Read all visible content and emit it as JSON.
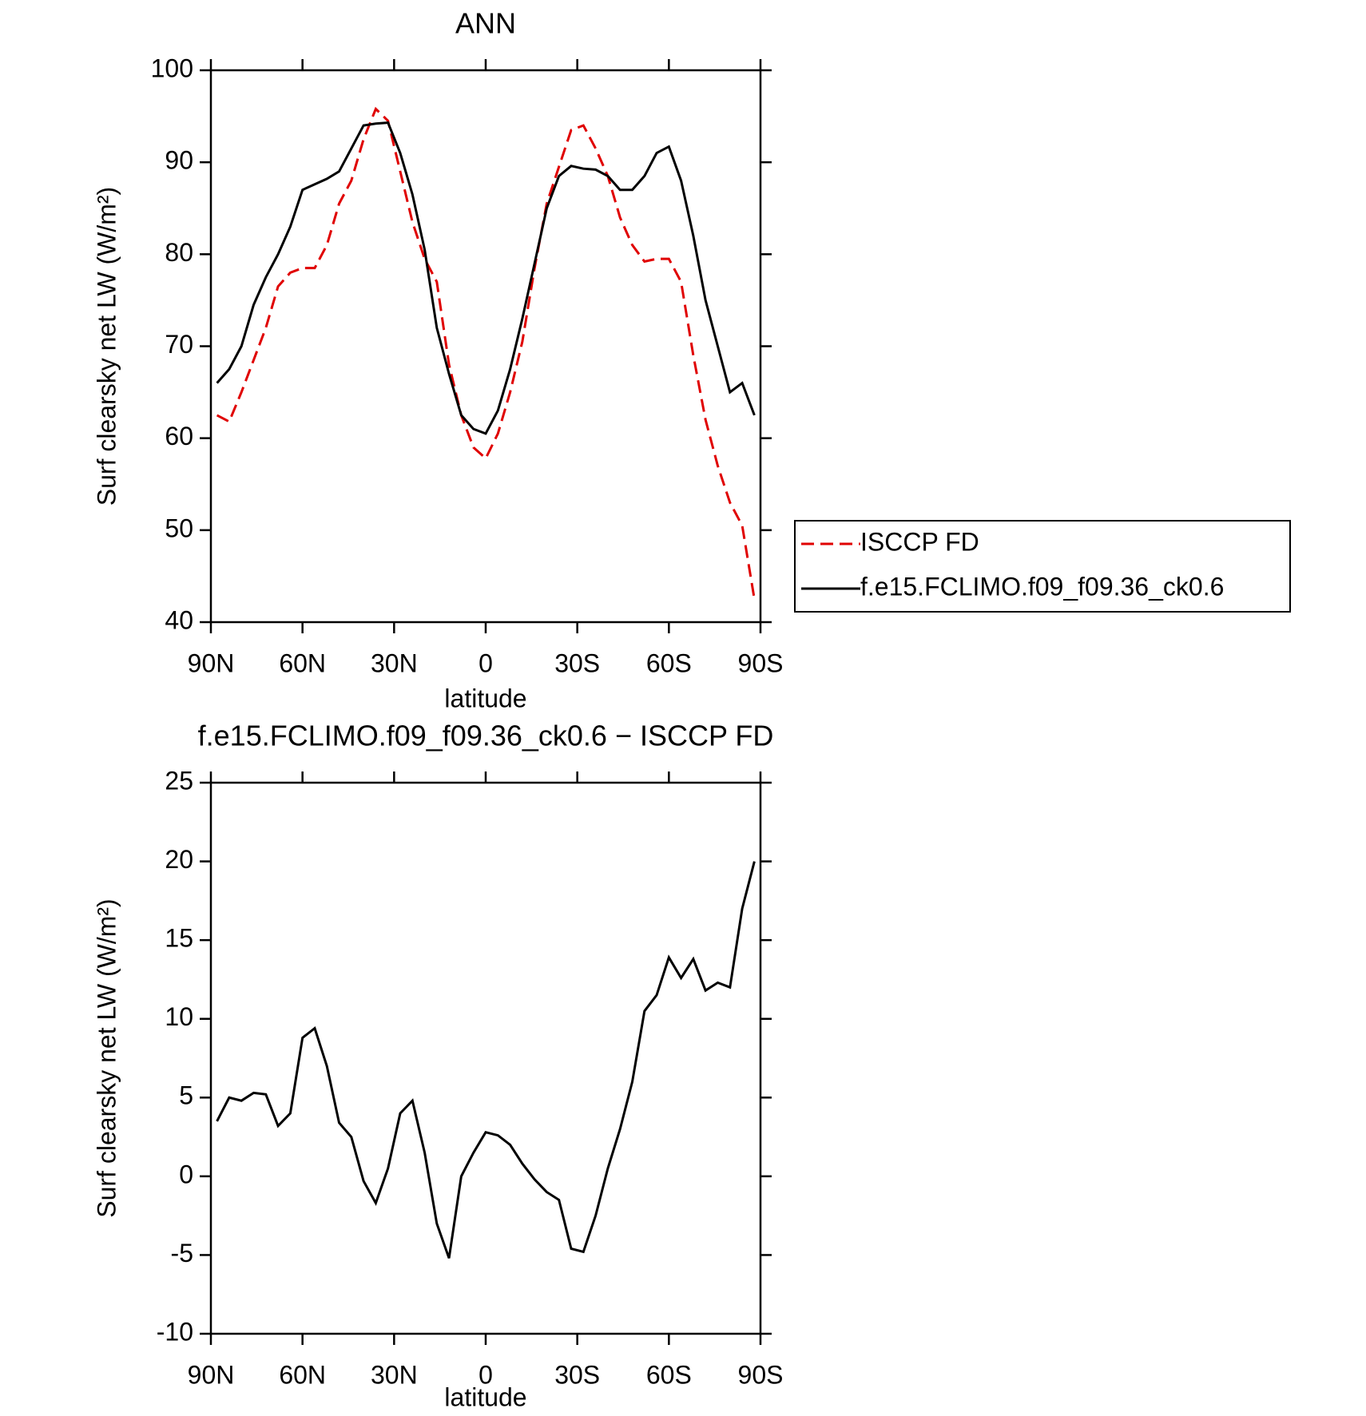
{
  "chart_data": [
    {
      "type": "line",
      "title": "ANN",
      "xlabel": "latitude",
      "ylabel": "Surf clearsky net LW (W/m²)",
      "x": [
        88,
        84,
        80,
        76,
        72,
        68,
        64,
        60,
        56,
        52,
        48,
        44,
        40,
        36,
        32,
        28,
        24,
        20,
        16,
        12,
        8,
        4,
        0,
        -4,
        -8,
        -12,
        -16,
        -20,
        -24,
        -28,
        -32,
        -36,
        -40,
        -44,
        -48,
        -52,
        -56,
        -60,
        -64,
        -68,
        -72,
        -76,
        -80,
        -84,
        -88
      ],
      "series": [
        {
          "name": "ISCCP FD",
          "color": "#e00000",
          "dash": true,
          "values": [
            62.5,
            61.8,
            65,
            68.5,
            72,
            76.5,
            78,
            78.5,
            78.5,
            81,
            85.5,
            88,
            92.5,
            95.8,
            94.5,
            89,
            83.5,
            79.5,
            77,
            68,
            62.5,
            59,
            57.8,
            60.5,
            65,
            70.5,
            78.5,
            85.5,
            89.5,
            93.5,
            94,
            91.5,
            88.5,
            84,
            81,
            79.2,
            79.5,
            79.5,
            77,
            69,
            62,
            57,
            53,
            50.5,
            42.5
          ]
        },
        {
          "name": "f.e15.FCLIMO.f09_f09.36_ck0.6",
          "color": "#000000",
          "dash": false,
          "values": [
            66,
            67.5,
            70,
            74.5,
            77.5,
            80,
            83,
            87,
            87.6,
            88.2,
            89,
            91.5,
            94,
            94.2,
            94.3,
            91,
            86.5,
            80.5,
            72,
            67,
            62.5,
            61,
            60.5,
            63,
            67.5,
            73,
            79,
            85,
            88.5,
            89.6,
            89.3,
            89.2,
            88.5,
            87,
            87,
            88.5,
            91,
            91.7,
            88,
            82,
            75,
            70,
            65,
            66,
            62.5
          ]
        }
      ],
      "xlim": [
        90,
        -90
      ],
      "xticks": [
        {
          "value": 90,
          "label": "90N"
        },
        {
          "value": 60,
          "label": "60N"
        },
        {
          "value": 30,
          "label": "30N"
        },
        0,
        {
          "value": -30,
          "label": "30S"
        },
        {
          "value": -60,
          "label": "60S"
        },
        {
          "value": -90,
          "label": "90S"
        }
      ],
      "ylim": [
        40,
        100
      ],
      "yticks": [
        40,
        50,
        60,
        70,
        80,
        90,
        100
      ],
      "legend": "right"
    },
    {
      "type": "line",
      "title": "f.e15.FCLIMO.f09_f09.36_ck0.6 − ISCCP FD",
      "xlabel": "latitude",
      "ylabel": "Surf clearsky net LW (W/m²)",
      "x": [
        88,
        84,
        80,
        76,
        72,
        68,
        64,
        60,
        56,
        52,
        48,
        44,
        40,
        36,
        32,
        28,
        24,
        20,
        16,
        12,
        8,
        4,
        0,
        -4,
        -8,
        -12,
        -16,
        -20,
        -24,
        -28,
        -32,
        -36,
        -40,
        -44,
        -48,
        -52,
        -56,
        -60,
        -64,
        -68,
        -72,
        -76,
        -80,
        -84,
        -88
      ],
      "series": [
        {
          "color": "#000000",
          "dash": false,
          "values": [
            3.5,
            5,
            4.8,
            5.3,
            5.2,
            3.2,
            4,
            8.8,
            9.4,
            7,
            3.4,
            2.5,
            -0.3,
            -1.7,
            0.5,
            4,
            4.8,
            1.5,
            -3,
            -5.2,
            0,
            1.5,
            2.8,
            2.6,
            2,
            0.8,
            -0.2,
            -1,
            -1.5,
            -4.6,
            -4.8,
            -2.5,
            0.5,
            3,
            6,
            10.5,
            11.5,
            13.9,
            12.6,
            13.8,
            11.8,
            12.3,
            12,
            17,
            20
          ]
        }
      ],
      "xlim": [
        90,
        -90
      ],
      "xticks": [
        {
          "value": 90,
          "label": "90N"
        },
        {
          "value": 60,
          "label": "60N"
        },
        {
          "value": 30,
          "label": "30N"
        },
        0,
        {
          "value": -30,
          "label": "30S"
        },
        {
          "value": -60,
          "label": "60S"
        },
        {
          "value": -90,
          "label": "90S"
        }
      ],
      "ylim": [
        -10,
        25
      ],
      "yticks": [
        -10,
        -5,
        0,
        5,
        10,
        15,
        20,
        25
      ]
    }
  ]
}
